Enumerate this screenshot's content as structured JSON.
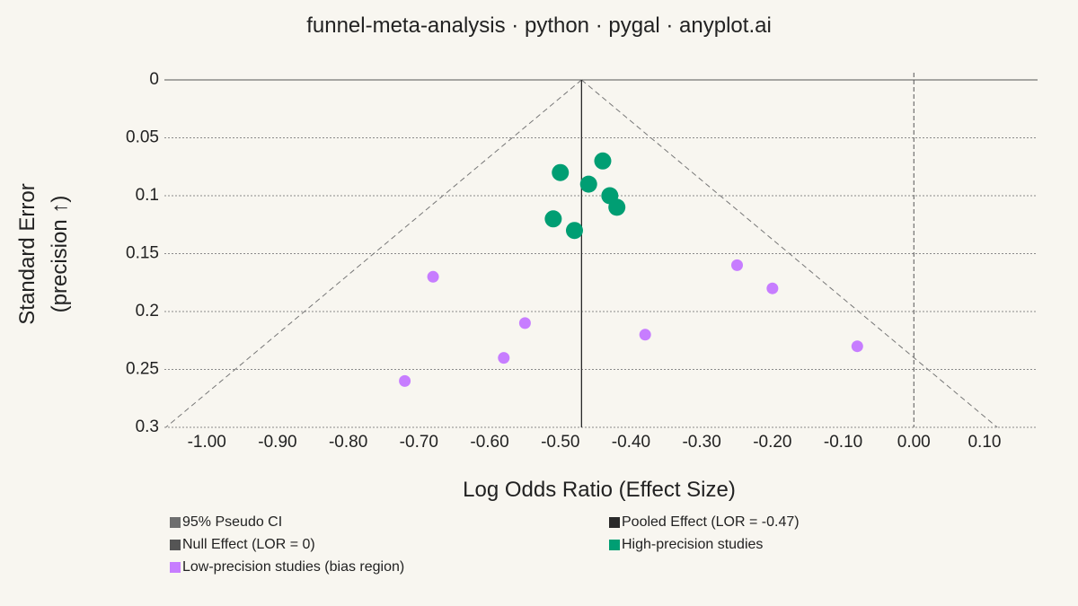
{
  "title": "funnel-meta-analysis · python · pygal · anyplot.ai",
  "chart_data": {
    "type": "scatter",
    "title": "funnel-meta-analysis · python · pygal · anyplot.ai",
    "xlabel": "Log Odds Ratio (Effect Size)",
    "ylabel_line1": "Standard Error",
    "ylabel_line2": "(precision ↑)",
    "xlim": [
      -1.06,
      0.175
    ],
    "ylim": [
      0,
      0.3
    ],
    "y_inverted": true,
    "x_ticks": [
      "-1.00",
      "-0.90",
      "-0.80",
      "-0.70",
      "-0.60",
      "-0.50",
      "-0.40",
      "-0.30",
      "-0.20",
      "-0.10",
      "0.00",
      "0.10"
    ],
    "y_ticks": [
      "0",
      "0.05",
      "0.1",
      "0.15",
      "0.2",
      "0.25",
      "0.3"
    ],
    "grid": "horizontal dotted",
    "legend_position": "bottom",
    "pooled_effect": -0.47,
    "null_effect": 0,
    "pseudo_ci_z": 1.96,
    "series": [
      {
        "name": "95% Pseudo CI",
        "kind": "funnel-lines",
        "color": "#777777"
      },
      {
        "name": "Pooled Effect (LOR = -0.47)",
        "kind": "vline",
        "value": -0.47,
        "color": "#2a2a2a"
      },
      {
        "name": "Null Effect (LOR = 0)",
        "kind": "vline",
        "value": 0,
        "color": "#555555"
      },
      {
        "name": "High-precision studies",
        "kind": "points",
        "color": "#009e73",
        "points": [
          {
            "x": -0.44,
            "y": 0.07
          },
          {
            "x": -0.5,
            "y": 0.08
          },
          {
            "x": -0.46,
            "y": 0.09
          },
          {
            "x": -0.43,
            "y": 0.1
          },
          {
            "x": -0.42,
            "y": 0.11
          },
          {
            "x": -0.51,
            "y": 0.12
          },
          {
            "x": -0.48,
            "y": 0.13
          }
        ]
      },
      {
        "name": "Low-precision studies (bias region)",
        "kind": "points",
        "color": "#c77dff",
        "points": [
          {
            "x": -0.68,
            "y": 0.17
          },
          {
            "x": -0.25,
            "y": 0.16
          },
          {
            "x": -0.2,
            "y": 0.18
          },
          {
            "x": -0.55,
            "y": 0.21
          },
          {
            "x": -0.38,
            "y": 0.22
          },
          {
            "x": -0.08,
            "y": 0.23
          },
          {
            "x": -0.58,
            "y": 0.24
          },
          {
            "x": -0.72,
            "y": 0.26
          }
        ]
      }
    ]
  }
}
